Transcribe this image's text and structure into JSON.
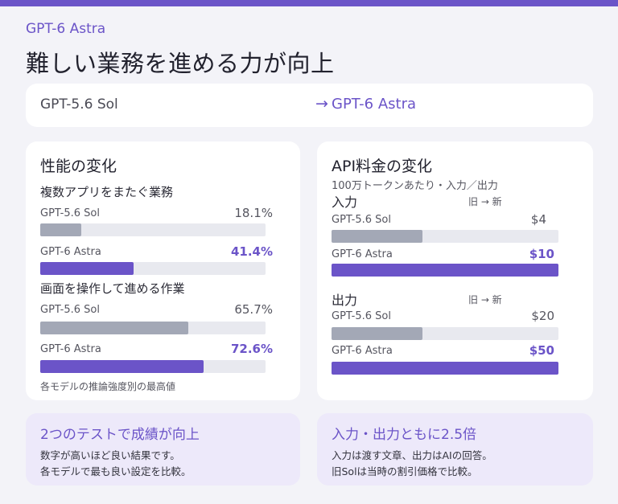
{
  "header": {
    "eyebrow": "GPT-6 Astra",
    "headline": "難しい業務を進める力が向上"
  },
  "colors": {
    "accent": "#6b54c8",
    "old_bar": "#a3a8b6",
    "track": "#e8e9ef",
    "background": "#f3f3f8",
    "note_background": "#ede9fa"
  },
  "comparison": {
    "from": "GPT-5.6 Sol",
    "arrow": "→",
    "to": "GPT-6 Astra"
  },
  "performance": {
    "title": "性能の変化",
    "groups": [
      {
        "label": "複数アプリをまたぐ業務",
        "rows": [
          {
            "model": "GPT-5.6 Sol",
            "value_text": "18.1%",
            "value": 18.1,
            "max": 100
          },
          {
            "model": "GPT-6 Astra",
            "value_text": "41.4%",
            "value": 41.4,
            "max": 100
          }
        ]
      },
      {
        "label": "画面を操作して進める作業",
        "rows": [
          {
            "model": "GPT-5.6 Sol",
            "value_text": "65.7%",
            "value": 65.7,
            "max": 100
          },
          {
            "model": "GPT-6 Astra",
            "value_text": "72.6%",
            "value": 72.6,
            "max": 100
          }
        ]
      }
    ],
    "footnote": "各モデルの推論強度別の最高値"
  },
  "pricing": {
    "title": "API料金の変化",
    "subtitle": "100万トークンあたり・入力／出力",
    "groups": [
      {
        "label": "入力",
        "legend": "旧 → 新",
        "rows": [
          {
            "model": "GPT-5.6 Sol",
            "value_text": "$4",
            "value": 4,
            "max": 10
          },
          {
            "model": "GPT-6 Astra",
            "value_text": "$10",
            "value": 10,
            "max": 10
          }
        ]
      },
      {
        "label": "出力",
        "legend": "旧 → 新",
        "rows": [
          {
            "model": "GPT-5.6 Sol",
            "value_text": "$20",
            "value": 20,
            "max": 50
          },
          {
            "model": "GPT-6 Astra",
            "value_text": "$50",
            "value": 50,
            "max": 50
          }
        ]
      }
    ]
  },
  "notes": [
    {
      "title": "2つのテストで成績が向上",
      "lines": [
        "数字が高いほど良い結果です。",
        "各モデルで最も良い設定を比較。"
      ]
    },
    {
      "title": "入力・出力ともに2.5倍",
      "lines": [
        "入力は渡す文章、出力はAIの回答。",
        "旧Solは当時の割引価格で比較。"
      ]
    }
  ]
}
